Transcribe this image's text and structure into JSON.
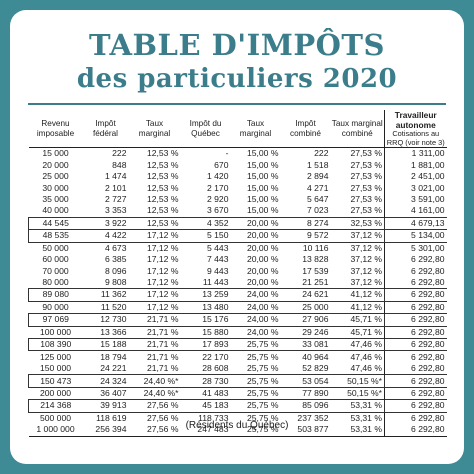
{
  "title_line1": "TABLE D'IMPÔTS",
  "title_line2": "des particuliers 2020",
  "headers": {
    "revenu": "Revenu imposable",
    "impot_federal": "Impôt fédéral",
    "taux_marginal": "Taux marginal",
    "impot_quebec": "Impôt du Québec",
    "taux_marginal2": "Taux marginal",
    "impot_combine": "Impôt combiné",
    "taux_marginal_combine": "Taux marginal combiné",
    "travailleur_autonome": "Travailleur autonome",
    "cotisations": "Cotisations au RRQ (voir note 3)"
  },
  "rows": [
    {
      "revenu": "15 000",
      "fed": "222",
      "tm": "12,53 %",
      "qc": "-",
      "tm2": "15,00 %",
      "comb": "222",
      "tmc": "27,53 %",
      "rrq": "1 311,00",
      "boxed": false
    },
    {
      "revenu": "20 000",
      "fed": "848",
      "tm": "12,53 %",
      "qc": "670",
      "tm2": "15,00 %",
      "comb": "1 518",
      "tmc": "27,53 %",
      "rrq": "1 881,00",
      "boxed": false
    },
    {
      "revenu": "25 000",
      "fed": "1 474",
      "tm": "12,53 %",
      "qc": "1 420",
      "tm2": "15,00 %",
      "comb": "2 894",
      "tmc": "27,53 %",
      "rrq": "2 451,00",
      "boxed": false
    },
    {
      "revenu": "30 000",
      "fed": "2 101",
      "tm": "12,53 %",
      "qc": "2 170",
      "tm2": "15,00 %",
      "comb": "4 271",
      "tmc": "27,53 %",
      "rrq": "3 021,00",
      "boxed": false
    },
    {
      "revenu": "35 000",
      "fed": "2 727",
      "tm": "12,53 %",
      "qc": "2 920",
      "tm2": "15,00 %",
      "comb": "5 647",
      "tmc": "27,53 %",
      "rrq": "3 591,00",
      "boxed": false
    },
    {
      "revenu": "40 000",
      "fed": "3 353",
      "tm": "12,53 %",
      "qc": "3 670",
      "tm2": "15,00 %",
      "comb": "7 023",
      "tmc": "27,53 %",
      "rrq": "4 161,00",
      "boxed": false
    },
    {
      "revenu": "44 545",
      "fed": "3 922",
      "tm": "12,53 %",
      "qc": "4 352",
      "tm2": "20,00 %",
      "comb": "8 274",
      "tmc": "32,53 %",
      "rrq": "4 679,13",
      "boxed": true
    },
    {
      "revenu": "48 535",
      "fed": "4 422",
      "tm": "17,12 %",
      "qc": "5 150",
      "tm2": "20,00 %",
      "comb": "9 572",
      "tmc": "37,12 %",
      "rrq": "5 134,00",
      "boxed": true
    },
    {
      "revenu": "50 000",
      "fed": "4 673",
      "tm": "17,12 %",
      "qc": "5 443",
      "tm2": "20,00 %",
      "comb": "10 116",
      "tmc": "37,12 %",
      "rrq": "5 301,00",
      "boxed": false
    },
    {
      "revenu": "60 000",
      "fed": "6 385",
      "tm": "17,12 %",
      "qc": "7 443",
      "tm2": "20,00 %",
      "comb": "13 828",
      "tmc": "37,12 %",
      "rrq": "6 292,80",
      "boxed": false
    },
    {
      "revenu": "70 000",
      "fed": "8 096",
      "tm": "17,12 %",
      "qc": "9 443",
      "tm2": "20,00 %",
      "comb": "17 539",
      "tmc": "37,12 %",
      "rrq": "6 292,80",
      "boxed": false
    },
    {
      "revenu": "80 000",
      "fed": "9 808",
      "tm": "17,12 %",
      "qc": "11 443",
      "tm2": "20,00 %",
      "comb": "21 251",
      "tmc": "37,12 %",
      "rrq": "6 292,80",
      "boxed": false
    },
    {
      "revenu": "89 080",
      "fed": "11 362",
      "tm": "17,12 %",
      "qc": "13 259",
      "tm2": "24,00 %",
      "comb": "24 621",
      "tmc": "41,12 %",
      "rrq": "6 292,80",
      "boxed": true
    },
    {
      "revenu": "90 000",
      "fed": "11 520",
      "tm": "17,12 %",
      "qc": "13 480",
      "tm2": "24,00 %",
      "comb": "25 000",
      "tmc": "41,12 %",
      "rrq": "6 292,80",
      "boxed": false
    },
    {
      "revenu": "97 069",
      "fed": "12 730",
      "tm": "21,71 %",
      "qc": "15 176",
      "tm2": "24,00 %",
      "comb": "27 906",
      "tmc": "45,71 %",
      "rrq": "6 292,80",
      "boxed": true
    },
    {
      "revenu": "100 000",
      "fed": "13 366",
      "tm": "21,71 %",
      "qc": "15 880",
      "tm2": "24,00 %",
      "comb": "29 246",
      "tmc": "45,71 %",
      "rrq": "6 292,80",
      "boxed": false
    },
    {
      "revenu": "108 390",
      "fed": "15 188",
      "tm": "21,71 %",
      "qc": "17 893",
      "tm2": "25,75 %",
      "comb": "33 081",
      "tmc": "47,46 %",
      "rrq": "6 292,80",
      "boxed": true
    },
    {
      "revenu": "125 000",
      "fed": "18 794",
      "tm": "21,71 %",
      "qc": "22 170",
      "tm2": "25,75 %",
      "comb": "40 964",
      "tmc": "47,46 %",
      "rrq": "6 292,80",
      "boxed": false
    },
    {
      "revenu": "150 000",
      "fed": "24 221",
      "tm": "21,71 %",
      "qc": "28 608",
      "tm2": "25,75 %",
      "comb": "52 829",
      "tmc": "47,46 %",
      "rrq": "6 292,80",
      "boxed": false
    },
    {
      "revenu": "150 473",
      "fed": "24 324",
      "tm": "24,40 %*",
      "qc": "28 730",
      "tm2": "25,75 %",
      "comb": "53 054",
      "tmc": "50,15 %*",
      "rrq": "6 292,80",
      "boxed": true
    },
    {
      "revenu": "200 000",
      "fed": "36 407",
      "tm": "24,40 %*",
      "qc": "41 483",
      "tm2": "25,75 %",
      "comb": "77 890",
      "tmc": "50,15 %*",
      "rrq": "6 292,80",
      "boxed": false
    },
    {
      "revenu": "214 368",
      "fed": "39 913",
      "tm": "27,56 %",
      "qc": "45 183",
      "tm2": "25,75 %",
      "comb": "85 096",
      "tmc": "53,31 %",
      "rrq": "6 292,80",
      "boxed": true
    },
    {
      "revenu": "500 000",
      "fed": "118 619",
      "tm": "27,56 %",
      "qc": "118 733",
      "tm2": "25,75 %",
      "comb": "237 352",
      "tmc": "53,31 %",
      "rrq": "6 292,80",
      "boxed": false
    },
    {
      "revenu": "1 000 000",
      "fed": "256 394",
      "tm": "27,56 %",
      "qc": "247 483",
      "tm2": "25,75 %",
      "comb": "503 877",
      "tmc": "53,31 %",
      "rrq": "6 292,80",
      "boxed": false
    }
  ],
  "footer": "(Résidents du Québec)",
  "colors": {
    "background": "#3e8b96",
    "title": "#3b7d8a"
  }
}
